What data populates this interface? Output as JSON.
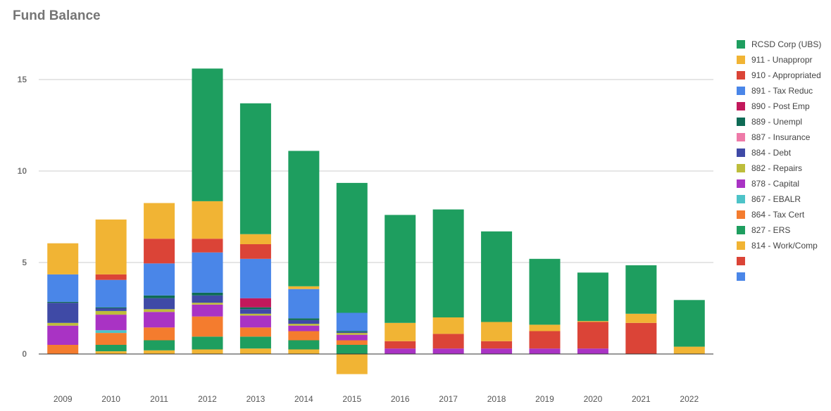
{
  "chart_data": {
    "type": "bar",
    "stacked": true,
    "title": "Fund Balance",
    "xlabel": "",
    "ylabel": "",
    "ylim": [
      -1.5,
      17.5
    ],
    "yticks": [
      0,
      5,
      10,
      15
    ],
    "grid": true,
    "legend_position": "right",
    "categories": [
      "2009",
      "2010",
      "2011",
      "2012",
      "2013",
      "2014",
      "2015",
      "2016",
      "2017",
      "2018",
      "2019",
      "2020",
      "2021",
      "2022"
    ],
    "series": [
      {
        "name": "814 - Work/Comp",
        "color": "#F1B434",
        "values": [
          0,
          0.15,
          0.2,
          0.25,
          0.3,
          0.25,
          -1.1,
          0,
          0,
          0,
          0,
          0,
          0,
          0
        ]
      },
      {
        "name": "827 - ERS",
        "color": "#1E9E5F",
        "values": [
          0,
          0.35,
          0.55,
          0.7,
          0.65,
          0.5,
          0.5,
          0,
          0,
          0,
          0,
          0,
          0,
          0
        ]
      },
      {
        "name": "864 - Tax Cert",
        "color": "#F47C2E",
        "values": [
          0.5,
          0.65,
          0.7,
          1.1,
          0.5,
          0.5,
          0.25,
          0,
          0,
          0,
          0,
          0,
          0,
          0
        ]
      },
      {
        "name": "867 - EBALR",
        "color": "#4DC3C8",
        "values": [
          0,
          0.15,
          0,
          0,
          0,
          0,
          0,
          0,
          0,
          0,
          0,
          0,
          0,
          0
        ]
      },
      {
        "name": "878 - Capital",
        "color": "#A933C4",
        "values": [
          1.05,
          0.85,
          0.85,
          0.65,
          0.65,
          0.3,
          0.3,
          0.3,
          0.3,
          0.3,
          0.3,
          0.3,
          0,
          0
        ]
      },
      {
        "name": "882 - Repairs",
        "color": "#BDBD3B",
        "values": [
          0.15,
          0.2,
          0.15,
          0.1,
          0.1,
          0.1,
          0.1,
          0,
          0,
          0,
          0,
          0,
          0,
          0
        ]
      },
      {
        "name": "884 - Debt",
        "color": "#3F4AA6",
        "values": [
          1.1,
          0.15,
          0.6,
          0.4,
          0.25,
          0.2,
          0.05,
          0,
          0,
          0,
          0,
          0,
          0,
          0
        ]
      },
      {
        "name": "887 - Insurance",
        "color": "#EE7AA8",
        "values": [
          0,
          0,
          0,
          0,
          0,
          0,
          0,
          0,
          0,
          0,
          0,
          0,
          0,
          0
        ]
      },
      {
        "name": "889 - Unempl",
        "color": "#0E6B55",
        "values": [
          0.05,
          0.05,
          0.15,
          0.15,
          0.1,
          0.1,
          0.05,
          0,
          0,
          0,
          0,
          0,
          0,
          0
        ]
      },
      {
        "name": "890 - Post Emp",
        "color": "#C2185B",
        "values": [
          0,
          0,
          0,
          0,
          0.5,
          0,
          0,
          0,
          0,
          0,
          0,
          0,
          0,
          0
        ]
      },
      {
        "name": "891 - Tax Reduc",
        "color": "#4A86E8",
        "values": [
          1.5,
          1.5,
          1.75,
          2.2,
          2.15,
          1.6,
          1.0,
          0,
          0,
          0,
          0,
          0,
          0,
          0
        ]
      },
      {
        "name": "910 - Appropriated",
        "color": "#DB4437",
        "values": [
          0,
          0.3,
          1.35,
          0.75,
          0.8,
          0,
          0,
          0.4,
          0.8,
          0.4,
          0.95,
          1.45,
          1.7,
          0
        ]
      },
      {
        "name": "911 - Unappropr",
        "color": "#F1B434",
        "values": [
          1.7,
          3.0,
          1.95,
          2.05,
          0.55,
          0.15,
          0,
          1.0,
          0.9,
          1.05,
          0.35,
          0.05,
          0.5,
          0.4
        ]
      },
      {
        "name": "RCSD Corp (UBS)",
        "color": "#1E9E5F",
        "values": [
          0,
          0,
          0,
          7.25,
          7.15,
          7.4,
          7.1,
          5.9,
          5.9,
          4.95,
          3.6,
          2.65,
          2.65,
          2.55
        ]
      }
    ],
    "legend": [
      {
        "name": "RCSD Corp (UBS)",
        "color": "#1E9E5F"
      },
      {
        "name": "911 - Unappropr",
        "color": "#F1B434"
      },
      {
        "name": "910 - Appropriated",
        "color": "#DB4437"
      },
      {
        "name": "891 - Tax Reduc",
        "color": "#4A86E8"
      },
      {
        "name": "890 - Post Emp",
        "color": "#C2185B"
      },
      {
        "name": "889 - Unempl",
        "color": "#0E6B55"
      },
      {
        "name": "887 - Insurance",
        "color": "#EE7AA8"
      },
      {
        "name": "884 - Debt",
        "color": "#3F4AA6"
      },
      {
        "name": "882 - Repairs",
        "color": "#BDBD3B"
      },
      {
        "name": "878 - Capital",
        "color": "#A933C4"
      },
      {
        "name": "867 - EBALR",
        "color": "#4DC3C8"
      },
      {
        "name": "864 - Tax Cert",
        "color": "#F47C2E"
      },
      {
        "name": "827 - ERS",
        "color": "#1E9E5F"
      },
      {
        "name": "814 - Work/Comp",
        "color": "#F1B434"
      },
      {
        "name": "",
        "color": "#DB4437"
      },
      {
        "name": "",
        "color": "#4A86E8"
      }
    ]
  }
}
